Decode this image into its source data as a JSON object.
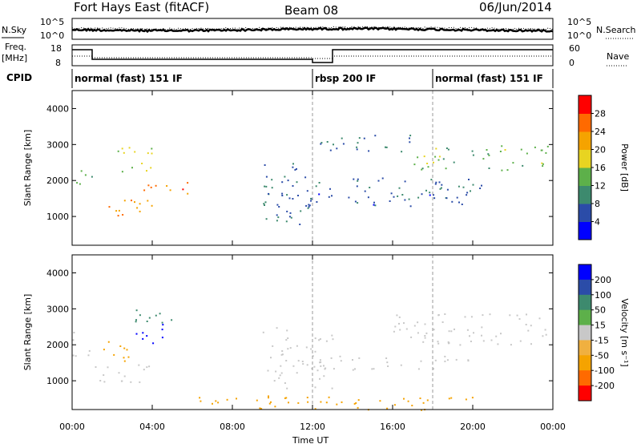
{
  "header": {
    "station": "Fort Hays East (fitACF)",
    "beam": "Beam 08",
    "date": "06/Jun/2014"
  },
  "strip_labels": {
    "nsky": "N.Sky",
    "nsearch": "N.Search",
    "freq": "Freq.",
    "freq_unit": "[MHz]",
    "nave": "Nave",
    "cpid": "CPID"
  },
  "strip_ticks": {
    "noise_left": [
      "10^5",
      "10^0"
    ],
    "noise_right": [
      "10^5",
      "10^0"
    ],
    "freq_left": [
      "18",
      "8"
    ],
    "nave_right": [
      "60",
      "0"
    ]
  },
  "cpid_segments": [
    {
      "start_hour": 0.0,
      "end_hour": 12.0,
      "label": "normal (fast) 151 IF"
    },
    {
      "start_hour": 12.0,
      "end_hour": 18.0,
      "label": "rbsp 200 IF"
    },
    {
      "start_hour": 18.0,
      "end_hour": 24.0,
      "label": "normal (fast) 151 IF"
    }
  ],
  "chart_data": [
    {
      "type": "heatmap",
      "panel": "power",
      "ylabel": "Slant Range [km]",
      "xlabel": "",
      "x_range_hours": [
        0,
        24
      ],
      "ylim": [
        200,
        4500
      ],
      "yticks": [
        1000,
        2000,
        3000,
        4000
      ],
      "colorbar": {
        "label": "Power [dB]",
        "ticks": [
          "4",
          "8",
          "12",
          "16",
          "20",
          "24",
          "28"
        ],
        "colors": [
          "#0000ff",
          "#2b4ca8",
          "#3d8a6e",
          "#5db04a",
          "#e8d421",
          "#f5a300",
          "#ff6a00",
          "#ff0000"
        ]
      },
      "echo_regions": [
        {
          "t0": 0.0,
          "t1": 1.0,
          "r0": 1750,
          "r1": 2350,
          "level": 12
        },
        {
          "t0": 1.0,
          "t1": 4.0,
          "r0": 1000,
          "r1": 1500,
          "level": 24
        },
        {
          "t0": 2.0,
          "t1": 4.0,
          "r0": 2200,
          "r1": 3000,
          "level": 16
        },
        {
          "t0": 3.5,
          "t1": 6.0,
          "r0": 1650,
          "r1": 2100,
          "level": 26
        },
        {
          "t0": 9.5,
          "t1": 12.0,
          "r0": 800,
          "r1": 2600,
          "level": 8
        },
        {
          "t0": 12.0,
          "t1": 13.0,
          "r0": 1400,
          "r1": 2000,
          "level": 8
        },
        {
          "t0": 10.0,
          "t1": 20.0,
          "r0": 1300,
          "r1": 1700,
          "level": 6
        },
        {
          "t0": 14.0,
          "t1": 21.0,
          "r0": 1500,
          "r1": 2100,
          "level": 8
        },
        {
          "t0": 12.0,
          "t1": 17.0,
          "r0": 2800,
          "r1": 3300,
          "level": 8
        },
        {
          "t0": 17.0,
          "t1": 24.0,
          "r0": 2300,
          "r1": 3000,
          "level": 14
        }
      ]
    },
    {
      "type": "heatmap",
      "panel": "velocity",
      "ylabel": "Slant Range [km]",
      "xlabel": "Time UT",
      "x_range_hours": [
        0,
        24
      ],
      "xticks": [
        "00:00",
        "04:00",
        "08:00",
        "12:00",
        "16:00",
        "20:00",
        "00:00"
      ],
      "ylim": [
        200,
        4500
      ],
      "yticks": [
        1000,
        2000,
        3000,
        4000
      ],
      "colorbar": {
        "label": "Velocity [m s⁻¹]",
        "ticks": [
          "200",
          "100",
          "50",
          "15",
          "-15",
          "-50",
          "-100",
          "-200"
        ],
        "colors": [
          "#0000ff",
          "#2b4ca8",
          "#3d8a6e",
          "#5db04a",
          "#c8c8c8",
          "#f0b040",
          "#f5a300",
          "#ff6a00",
          "#ff0000"
        ]
      },
      "echo_regions": [
        {
          "t0": 0.0,
          "t1": 1.0,
          "r0": 1700,
          "r1": 2400,
          "level": 0
        },
        {
          "t0": 1.0,
          "t1": 4.0,
          "r0": 900,
          "r1": 1500,
          "level": 0
        },
        {
          "t0": 3.0,
          "t1": 4.5,
          "r0": 2000,
          "r1": 2600,
          "level": 250
        },
        {
          "t0": 3.0,
          "t1": 5.0,
          "r0": 2600,
          "r1": 3200,
          "level": 60
        },
        {
          "t0": 1.5,
          "t1": 3.0,
          "r0": 1400,
          "r1": 2100,
          "level": -60
        },
        {
          "t0": 9.5,
          "t1": 13.0,
          "r0": 800,
          "r1": 2500,
          "level": 0
        },
        {
          "t0": 12.0,
          "t1": 20.0,
          "r0": 1300,
          "r1": 1700,
          "level": 0
        },
        {
          "t0": 16.0,
          "t1": 24.0,
          "r0": 2000,
          "r1": 2900,
          "level": 0
        },
        {
          "t0": 6.0,
          "t1": 20.0,
          "r0": 200,
          "r1": 600,
          "level": -60
        }
      ]
    }
  ]
}
